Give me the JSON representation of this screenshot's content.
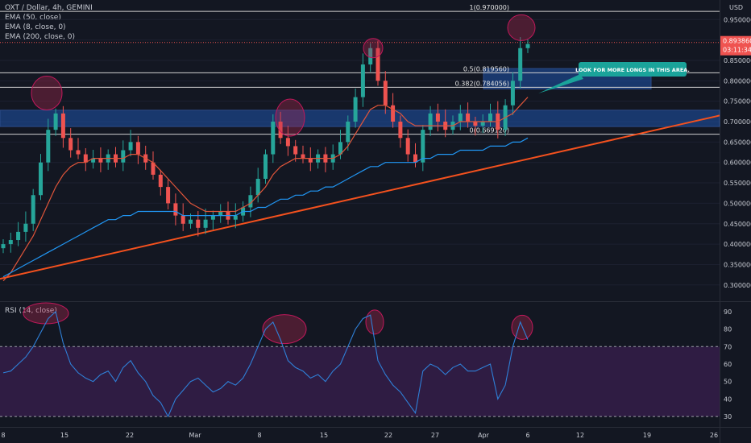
{
  "legend": {
    "symbol": "OXT / Dollar, 4h, GEMINI",
    "ema1": "EMA (50, close)",
    "ema2": "EMA (8, close, 0)",
    "ema3": "EMA (200, close, 0)",
    "rsi": "RSI (14, close)"
  },
  "currency": "USD",
  "price_badge": {
    "value": "0.893860",
    "timer": "03:11:34",
    "color": "#ef5350"
  },
  "annotation": "LOOK FOR MORE LONGS IN THIS AREA.",
  "colors": {
    "up": "#26a69a",
    "down": "#ef5350",
    "ema50": "#e0553a",
    "ema200": "#2196f3",
    "trend": "#f4511e",
    "zone": "#1e4fa0",
    "rsi": "#2f80d8",
    "rsi_band": "#3a1f4f",
    "callout": "#1aa39a"
  },
  "chart_data": [
    {
      "type": "candlestick",
      "title": "OXT / Dollar, 4h, GEMINI",
      "y_axis_ticks": [
        "0.950000",
        "0.900000",
        "0.850000",
        "0.800000",
        "0.750000",
        "0.700000",
        "0.650000",
        "0.600000",
        "0.550000",
        "0.500000",
        "0.450000",
        "0.400000",
        "0.350000",
        "0.300000"
      ],
      "ylim": [
        0.27,
        0.99
      ],
      "x_axis_ticks": [
        "8",
        "15",
        "22",
        "Mar",
        "8",
        "15",
        "22",
        "27",
        "Apr",
        "6",
        "12",
        "19",
        "26"
      ],
      "fib_levels": [
        {
          "label": "1(0.970000)",
          "value": 0.97
        },
        {
          "label": "0.5(0.819560)",
          "value": 0.81956
        },
        {
          "label": "0.382(0.784056)",
          "value": 0.784056
        },
        {
          "label": "0(0.669120)",
          "value": 0.66912
        }
      ],
      "closes": [
        0.4,
        0.41,
        0.43,
        0.45,
        0.52,
        0.6,
        0.68,
        0.72,
        0.66,
        0.63,
        0.62,
        0.6,
        0.61,
        0.6,
        0.62,
        0.6,
        0.63,
        0.65,
        0.62,
        0.6,
        0.57,
        0.54,
        0.5,
        0.47,
        0.45,
        0.46,
        0.44,
        0.46,
        0.47,
        0.48,
        0.46,
        0.47,
        0.49,
        0.52,
        0.56,
        0.62,
        0.7,
        0.66,
        0.64,
        0.62,
        0.61,
        0.6,
        0.62,
        0.6,
        0.62,
        0.65,
        0.7,
        0.76,
        0.84,
        0.88,
        0.8,
        0.74,
        0.7,
        0.66,
        0.62,
        0.6,
        0.68,
        0.72,
        0.7,
        0.68,
        0.7,
        0.72,
        0.7,
        0.69,
        0.7,
        0.72,
        0.68,
        0.74,
        0.8,
        0.88,
        0.89
      ],
      "ema50": [
        0.31,
        0.33,
        0.36,
        0.39,
        0.42,
        0.46,
        0.5,
        0.54,
        0.57,
        0.59,
        0.6,
        0.6,
        0.61,
        0.61,
        0.61,
        0.61,
        0.61,
        0.62,
        0.62,
        0.61,
        0.6,
        0.58,
        0.56,
        0.54,
        0.52,
        0.5,
        0.49,
        0.48,
        0.48,
        0.48,
        0.48,
        0.48,
        0.49,
        0.5,
        0.52,
        0.54,
        0.57,
        0.59,
        0.6,
        0.61,
        0.61,
        0.61,
        0.61,
        0.61,
        0.61,
        0.62,
        0.64,
        0.67,
        0.7,
        0.73,
        0.74,
        0.74,
        0.73,
        0.72,
        0.7,
        0.69,
        0.69,
        0.69,
        0.69,
        0.69,
        0.69,
        0.7,
        0.7,
        0.7,
        0.7,
        0.7,
        0.7,
        0.71,
        0.72,
        0.74,
        0.76
      ],
      "ema200": [
        0.32,
        0.33,
        0.34,
        0.35,
        0.36,
        0.37,
        0.38,
        0.39,
        0.4,
        0.41,
        0.42,
        0.43,
        0.44,
        0.45,
        0.46,
        0.46,
        0.47,
        0.47,
        0.48,
        0.48,
        0.48,
        0.48,
        0.48,
        0.48,
        0.47,
        0.47,
        0.47,
        0.47,
        0.47,
        0.47,
        0.47,
        0.47,
        0.48,
        0.48,
        0.49,
        0.49,
        0.5,
        0.51,
        0.51,
        0.52,
        0.52,
        0.53,
        0.53,
        0.54,
        0.54,
        0.55,
        0.56,
        0.57,
        0.58,
        0.59,
        0.59,
        0.6,
        0.6,
        0.6,
        0.6,
        0.6,
        0.61,
        0.61,
        0.62,
        0.62,
        0.62,
        0.63,
        0.63,
        0.63,
        0.63,
        0.64,
        0.64,
        0.64,
        0.65,
        0.65,
        0.66
      ]
    },
    {
      "type": "line",
      "title": "RSI (14, close)",
      "y_axis_ticks": [
        "90",
        "80",
        "70",
        "60",
        "50",
        "40",
        "30"
      ],
      "ylim": [
        25,
        95
      ],
      "bands": [
        30,
        70
      ],
      "values": [
        55,
        56,
        60,
        64,
        70,
        78,
        86,
        90,
        72,
        60,
        55,
        52,
        50,
        54,
        56,
        50,
        58,
        62,
        55,
        50,
        42,
        38,
        30,
        40,
        45,
        50,
        52,
        48,
        44,
        46,
        50,
        48,
        52,
        60,
        70,
        80,
        84,
        74,
        62,
        58,
        56,
        52,
        54,
        50,
        56,
        60,
        70,
        80,
        86,
        88,
        62,
        54,
        48,
        44,
        38,
        32,
        56,
        60,
        58,
        54,
        58,
        60,
        56,
        56,
        58,
        60,
        40,
        48,
        70,
        84,
        74
      ]
    }
  ]
}
